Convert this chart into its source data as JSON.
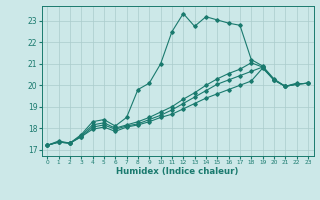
{
  "xlabel": "Humidex (Indice chaleur)",
  "bg_color": "#cce8e8",
  "line_color": "#1a7a6e",
  "grid_color": "#aacccc",
  "xlim": [
    -0.5,
    23.5
  ],
  "ylim": [
    16.7,
    23.7
  ],
  "yticks": [
    17,
    18,
    19,
    20,
    21,
    22,
    23
  ],
  "xticks": [
    0,
    1,
    2,
    3,
    4,
    5,
    6,
    7,
    8,
    9,
    10,
    11,
    12,
    13,
    14,
    15,
    16,
    17,
    18,
    19,
    20,
    21,
    22,
    23
  ],
  "series": [
    [
      17.2,
      17.4,
      17.3,
      17.7,
      18.3,
      18.4,
      18.1,
      18.5,
      19.8,
      20.1,
      21.0,
      22.5,
      23.35,
      22.75,
      23.2,
      23.05,
      22.9,
      22.8,
      21.2,
      20.9,
      20.3,
      19.95,
      20.1,
      null
    ],
    [
      17.2,
      17.35,
      17.3,
      17.65,
      18.15,
      18.25,
      18.0,
      18.15,
      18.3,
      18.5,
      18.75,
      19.0,
      19.35,
      19.65,
      20.0,
      20.3,
      20.55,
      20.75,
      21.05,
      20.85,
      20.25,
      19.95,
      20.05,
      20.1
    ],
    [
      17.2,
      17.35,
      17.3,
      17.6,
      18.05,
      18.15,
      17.95,
      18.1,
      18.2,
      18.4,
      18.6,
      18.85,
      19.15,
      19.45,
      19.75,
      20.05,
      20.25,
      20.45,
      20.65,
      20.85,
      20.25,
      19.95,
      20.05,
      20.1
    ],
    [
      17.2,
      17.35,
      17.3,
      17.6,
      17.95,
      18.05,
      17.85,
      18.05,
      18.15,
      18.3,
      18.5,
      18.65,
      18.9,
      19.15,
      19.4,
      19.6,
      19.8,
      20.0,
      20.2,
      20.8,
      20.25,
      19.95,
      20.05,
      20.1
    ]
  ]
}
